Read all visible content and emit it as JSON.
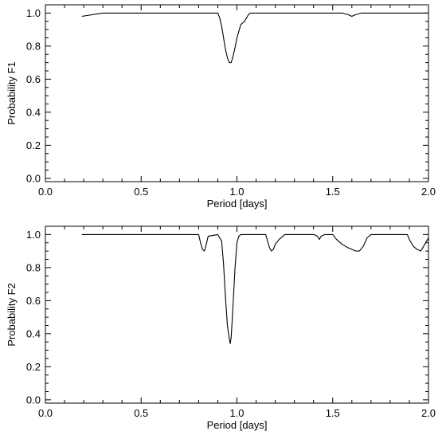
{
  "chart_data": [
    {
      "type": "line",
      "xlabel": "Period [days]",
      "ylabel": "Probability F1",
      "xlim": [
        0.0,
        2.0
      ],
      "ylim": [
        -0.02,
        1.05
      ],
      "x_ticks": [
        "0.0",
        "0.5",
        "1.0",
        "1.5",
        "2.0"
      ],
      "y_ticks": [
        "0.0",
        "0.2",
        "0.4",
        "0.6",
        "0.8",
        "1.0"
      ],
      "grid": false,
      "series": [
        {
          "x": [
            0.19,
            0.3,
            0.4,
            0.5,
            0.6,
            0.7,
            0.8,
            0.85,
            0.88,
            0.9,
            0.91,
            0.92,
            0.93,
            0.94,
            0.95,
            0.96,
            0.97,
            0.98,
            0.99,
            1.0,
            1.01,
            1.02,
            1.03,
            1.04,
            1.05,
            1.06,
            1.07,
            1.1,
            1.2,
            1.3,
            1.4,
            1.5,
            1.55,
            1.58,
            1.6,
            1.62,
            1.65,
            1.7,
            1.8,
            1.9,
            2.0
          ],
          "y": [
            0.98,
            1.0,
            1.0,
            1.0,
            1.0,
            1.0,
            1.0,
            1.0,
            1.0,
            1.0,
            0.97,
            0.92,
            0.85,
            0.78,
            0.73,
            0.7,
            0.7,
            0.74,
            0.79,
            0.85,
            0.89,
            0.93,
            0.94,
            0.95,
            0.97,
            0.99,
            1.0,
            1.0,
            1.0,
            1.0,
            1.0,
            1.0,
            1.0,
            0.99,
            0.98,
            0.99,
            1.0,
            1.0,
            1.0,
            1.0,
            1.0
          ]
        }
      ]
    },
    {
      "type": "line",
      "xlabel": "Period [days]",
      "ylabel": "Probability F2",
      "xlim": [
        0.0,
        2.0
      ],
      "ylim": [
        -0.02,
        1.05
      ],
      "x_ticks": [
        "0.0",
        "0.5",
        "1.0",
        "1.5",
        "2.0"
      ],
      "y_ticks": [
        "0.0",
        "0.2",
        "0.4",
        "0.6",
        "0.8",
        "1.0"
      ],
      "grid": false,
      "series": [
        {
          "x": [
            0.19,
            0.4,
            0.6,
            0.8,
            0.81,
            0.82,
            0.83,
            0.84,
            0.85,
            0.9,
            0.92,
            0.93,
            0.94,
            0.95,
            0.96,
            0.965,
            0.97,
            0.98,
            0.99,
            1.0,
            1.01,
            1.02,
            1.03,
            1.1,
            1.15,
            1.16,
            1.17,
            1.18,
            1.19,
            1.2,
            1.22,
            1.25,
            1.3,
            1.4,
            1.42,
            1.43,
            1.44,
            1.46,
            1.5,
            1.52,
            1.55,
            1.58,
            1.6,
            1.62,
            1.64,
            1.66,
            1.68,
            1.7,
            1.8,
            1.89,
            1.9,
            1.92,
            1.94,
            1.96,
            1.98,
            2.0
          ],
          "y": [
            1.0,
            1.0,
            1.0,
            1.0,
            0.95,
            0.91,
            0.9,
            0.94,
            0.99,
            1.0,
            0.96,
            0.82,
            0.62,
            0.45,
            0.37,
            0.34,
            0.38,
            0.58,
            0.8,
            0.95,
            0.99,
            1.0,
            1.0,
            1.0,
            1.0,
            0.96,
            0.92,
            0.9,
            0.91,
            0.94,
            0.97,
            1.0,
            1.0,
            1.0,
            0.99,
            0.97,
            0.99,
            1.0,
            1.0,
            0.97,
            0.94,
            0.92,
            0.91,
            0.9,
            0.9,
            0.93,
            0.98,
            1.0,
            1.0,
            1.0,
            0.97,
            0.93,
            0.91,
            0.9,
            0.94,
            0.98
          ]
        }
      ]
    }
  ]
}
